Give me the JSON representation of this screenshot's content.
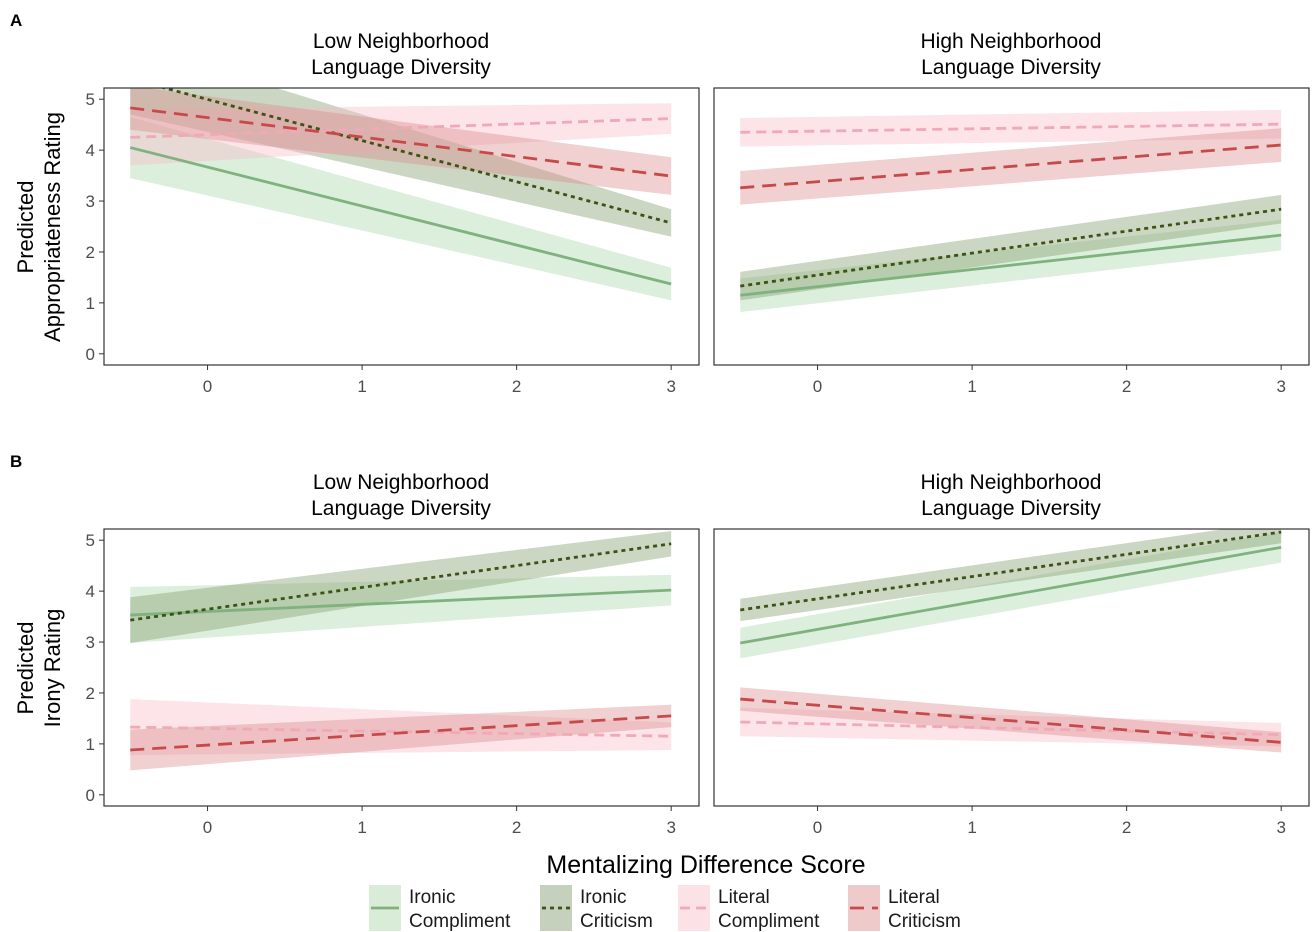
{
  "figure": {
    "x_axis_title": "Mentalizing Difference Score"
  },
  "styles": {
    "ironic_compliment": {
      "color": "#7fb27f",
      "fill": "#a8d5a8",
      "dash": ""
    },
    "ironic_criticism": {
      "color": "#3d5214",
      "fill": "#7f9a6a",
      "dash": "4 4"
    },
    "literal_compliment": {
      "color": "#f0a9b6",
      "fill": "#f8bcc8",
      "dash": "10 6"
    },
    "literal_criticism": {
      "color": "#c74a4a",
      "fill": "#d98a8a",
      "dash": "14 8"
    }
  },
  "legend": [
    {
      "key": "ironic_compliment",
      "label_line1": "Ironic",
      "label_line2": "Compliment"
    },
    {
      "key": "ironic_criticism",
      "label_line1": "Ironic",
      "label_line2": "Criticism"
    },
    {
      "key": "literal_compliment",
      "label_line1": "Literal",
      "label_line2": "Compliment"
    },
    {
      "key": "literal_criticism",
      "label_line1": "Literal",
      "label_line2": "Criticism"
    }
  ],
  "chart_data": [
    {
      "type": "line",
      "panel_label": "A",
      "ylabel_line1": "Predicted",
      "ylabel_line2": "Appropriateness Rating",
      "xlim": [
        -0.67,
        3.18
      ],
      "ylim": [
        -0.22,
        5.22
      ],
      "x_ticks": [
        0,
        1,
        2,
        3
      ],
      "y_ticks": [
        0,
        1,
        2,
        3,
        4,
        5
      ],
      "facets": [
        {
          "title_line1": "Low Neighborhood",
          "title_line2": "Language Diversity",
          "series": [
            {
              "key": "ironic_compliment",
              "x": [
                -0.5,
                3
              ],
              "y": [
                4.05,
                1.37
              ],
              "lower": [
                3.45,
                1.05
              ],
              "upper": [
                4.65,
                1.69
              ]
            },
            {
              "key": "ironic_criticism",
              "x": [
                -0.5,
                3
              ],
              "y": [
                5.4,
                2.57
              ],
              "lower": [
                4.7,
                2.3
              ],
              "upper": [
                6.1,
                2.84
              ]
            },
            {
              "key": "literal_compliment",
              "x": [
                -0.5,
                3
              ],
              "y": [
                4.25,
                4.62
              ],
              "lower": [
                3.7,
                4.32
              ],
              "upper": [
                4.8,
                4.92
              ]
            },
            {
              "key": "literal_criticism",
              "x": [
                -0.5,
                3
              ],
              "y": [
                4.83,
                3.49
              ],
              "lower": [
                4.4,
                3.12
              ],
              "upper": [
                5.26,
                3.86
              ]
            }
          ]
        },
        {
          "title_line1": "High Neighborhood",
          "title_line2": "Language Diversity",
          "series": [
            {
              "key": "ironic_compliment",
              "x": [
                -0.5,
                3
              ],
              "y": [
                1.15,
                2.33
              ],
              "lower": [
                0.82,
                2.03
              ],
              "upper": [
                1.48,
                2.63
              ]
            },
            {
              "key": "ironic_criticism",
              "x": [
                -0.5,
                3
              ],
              "y": [
                1.33,
                2.84
              ],
              "lower": [
                1.05,
                2.56
              ],
              "upper": [
                1.61,
                3.12
              ]
            },
            {
              "key": "literal_compliment",
              "x": [
                -0.5,
                3
              ],
              "y": [
                4.35,
                4.51
              ],
              "lower": [
                4.07,
                4.23
              ],
              "upper": [
                4.63,
                4.79
              ]
            },
            {
              "key": "literal_criticism",
              "x": [
                -0.5,
                3
              ],
              "y": [
                3.26,
                4.1
              ],
              "lower": [
                2.93,
                3.77
              ],
              "upper": [
                3.59,
                4.43
              ]
            }
          ]
        }
      ]
    },
    {
      "type": "line",
      "panel_label": "B",
      "ylabel_line1": "Predicted",
      "ylabel_line2": "Irony Rating",
      "xlim": [
        -0.67,
        3.18
      ],
      "ylim": [
        -0.22,
        5.22
      ],
      "x_ticks": [
        0,
        1,
        2,
        3
      ],
      "y_ticks": [
        0,
        1,
        2,
        3,
        4,
        5
      ],
      "facets": [
        {
          "title_line1": "Low Neighborhood",
          "title_line2": "Language Diversity",
          "series": [
            {
              "key": "ironic_compliment",
              "x": [
                -0.5,
                3
              ],
              "y": [
                3.53,
                4.02
              ],
              "lower": [
                2.98,
                3.72
              ],
              "upper": [
                4.08,
                4.32
              ]
            },
            {
              "key": "ironic_criticism",
              "x": [
                -0.5,
                3
              ],
              "y": [
                3.43,
                4.93
              ],
              "lower": [
                2.98,
                4.68
              ],
              "upper": [
                3.88,
                5.18
              ]
            },
            {
              "key": "literal_compliment",
              "x": [
                -0.5,
                3
              ],
              "y": [
                1.33,
                1.15
              ],
              "lower": [
                0.78,
                0.88
              ],
              "upper": [
                1.88,
                1.42
              ]
            },
            {
              "key": "literal_criticism",
              "x": [
                -0.5,
                3
              ],
              "y": [
                0.88,
                1.55
              ],
              "lower": [
                0.48,
                1.33
              ],
              "upper": [
                1.28,
                1.77
              ]
            }
          ]
        },
        {
          "title_line1": "High Neighborhood",
          "title_line2": "Language Diversity",
          "series": [
            {
              "key": "ironic_compliment",
              "x": [
                -0.5,
                3
              ],
              "y": [
                2.98,
                4.86
              ],
              "lower": [
                2.68,
                4.56
              ],
              "upper": [
                3.28,
                5.16
              ]
            },
            {
              "key": "ironic_criticism",
              "x": [
                -0.5,
                3
              ],
              "y": [
                3.63,
                5.16
              ],
              "lower": [
                3.41,
                4.94
              ],
              "upper": [
                3.85,
                5.38
              ]
            },
            {
              "key": "literal_compliment",
              "x": [
                -0.5,
                3
              ],
              "y": [
                1.43,
                1.18
              ],
              "lower": [
                1.15,
                0.95
              ],
              "upper": [
                1.71,
                1.41
              ]
            },
            {
              "key": "literal_criticism",
              "x": [
                -0.5,
                3
              ],
              "y": [
                1.88,
                1.03
              ],
              "lower": [
                1.65,
                0.83
              ],
              "upper": [
                2.11,
                1.23
              ]
            }
          ]
        }
      ]
    }
  ]
}
